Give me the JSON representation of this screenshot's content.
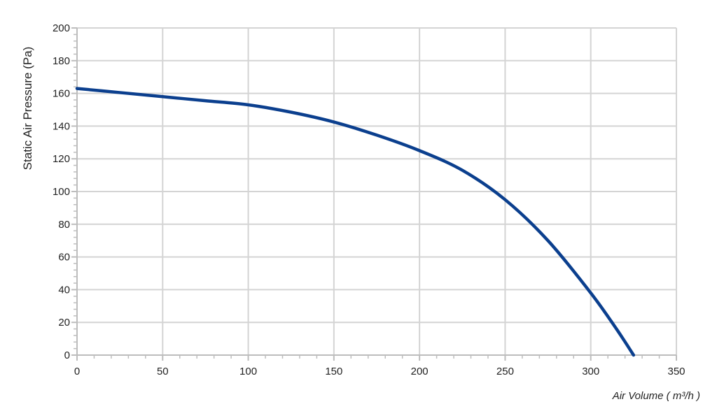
{
  "chart_data": {
    "type": "line",
    "title": "",
    "xlabel": "Air Volume ( m³/h )",
    "ylabel": "Static Air Pressure  (Pa)",
    "xlim": [
      0,
      350
    ],
    "ylim": [
      0,
      200
    ],
    "x_ticks": [
      0,
      50,
      100,
      150,
      200,
      250,
      300,
      350
    ],
    "y_ticks": [
      0,
      20,
      40,
      60,
      80,
      100,
      120,
      140,
      160,
      180,
      200
    ],
    "x_tick_labels": [
      "0",
      "50",
      "100",
      "150",
      "200",
      "250",
      "300",
      "350"
    ],
    "y_tick_labels": [
      "0",
      "20",
      "40",
      "60",
      "80",
      "100",
      "120",
      "140",
      "160",
      "180",
      "200"
    ],
    "grid": true,
    "legend": "none",
    "colors": {
      "series": "#0b3f8e",
      "grid": "#d4d4d4",
      "axis": "#bdbdbd",
      "minor_tick": "#bdbdbd"
    },
    "series": [
      {
        "x": [
          0,
          25,
          50,
          75,
          100,
          125,
          150,
          175,
          200,
          225,
          250,
          275,
          300,
          315,
          325
        ],
        "y": [
          163,
          160.5,
          158,
          155.5,
          153,
          148.5,
          142.5,
          134.5,
          125,
          113,
          95,
          70,
          38,
          16,
          0
        ]
      }
    ]
  }
}
